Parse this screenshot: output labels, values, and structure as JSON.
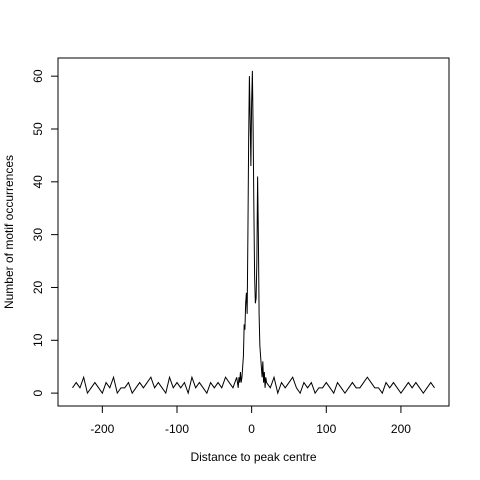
{
  "chart_data": {
    "type": "line",
    "xlabel": "Distance to peak centre",
    "ylabel": "Number of motif occurrences",
    "x": [
      -240,
      -235,
      -230,
      -225,
      -220,
      -215,
      -210,
      -205,
      -200,
      -195,
      -190,
      -185,
      -180,
      -175,
      -170,
      -165,
      -160,
      -155,
      -150,
      -145,
      -140,
      -135,
      -130,
      -125,
      -120,
      -115,
      -110,
      -105,
      -100,
      -95,
      -90,
      -85,
      -80,
      -75,
      -70,
      -65,
      -60,
      -55,
      -50,
      -45,
      -40,
      -35,
      -30,
      -25,
      -20,
      -19,
      -18,
      -17,
      -16,
      -15,
      -14,
      -13,
      -12,
      -11,
      -10,
      -9,
      -8,
      -7,
      -6,
      -5,
      -4,
      -3,
      -2,
      -1,
      0,
      1,
      2,
      3,
      4,
      5,
      6,
      7,
      8,
      9,
      10,
      11,
      12,
      13,
      14,
      15,
      16,
      17,
      18,
      19,
      20,
      25,
      30,
      35,
      40,
      45,
      50,
      55,
      60,
      65,
      70,
      75,
      80,
      85,
      90,
      95,
      100,
      105,
      110,
      115,
      120,
      125,
      130,
      135,
      140,
      145,
      150,
      155,
      160,
      165,
      170,
      175,
      180,
      185,
      190,
      195,
      200,
      205,
      210,
      215,
      220,
      225,
      230,
      235,
      240,
      245
    ],
    "values": [
      1,
      2,
      1,
      3,
      0,
      1,
      2,
      1,
      0,
      2,
      1,
      3,
      0,
      1,
      1,
      2,
      0,
      1,
      2,
      1,
      2,
      3,
      1,
      2,
      1,
      0,
      3,
      1,
      2,
      1,
      2,
      0,
      3,
      1,
      2,
      1,
      0,
      2,
      1,
      2,
      1,
      3,
      2,
      1,
      3,
      2,
      1,
      3,
      2,
      4,
      2,
      3,
      5,
      7,
      13,
      12,
      17,
      19,
      15,
      30,
      48,
      60,
      52,
      43,
      55,
      61,
      50,
      35,
      22,
      17,
      18,
      25,
      41,
      30,
      15,
      9,
      7,
      5,
      3,
      6,
      2,
      4,
      1,
      3,
      2,
      1,
      3,
      0,
      2,
      1,
      2,
      3,
      1,
      0,
      2,
      1,
      2,
      0,
      1,
      1,
      2,
      1,
      0,
      2,
      1,
      0,
      1,
      2,
      1,
      1,
      2,
      3,
      2,
      1,
      1,
      0,
      2,
      1,
      2,
      1,
      0,
      1,
      2,
      1,
      2,
      1,
      0,
      1,
      2,
      1
    ],
    "color": "#000000",
    "xlim": [
      -259.4,
      264.4
    ],
    "ylim": [
      -2.44,
      63.44
    ],
    "xticks": [
      -200,
      -100,
      0,
      100,
      200
    ],
    "yticks": [
      0,
      10,
      20,
      30,
      40,
      50,
      60
    ]
  }
}
